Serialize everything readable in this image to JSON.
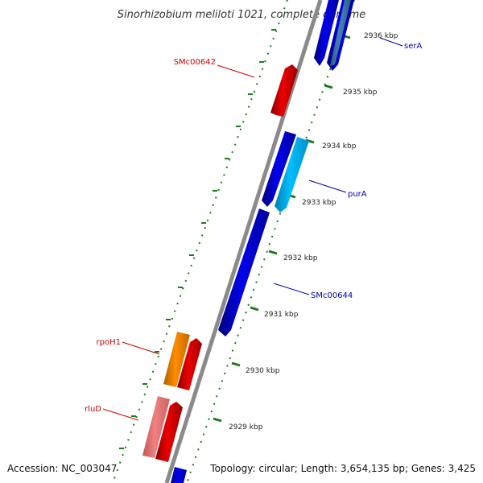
{
  "title": "Sinorhizobium meliloti 1021, complete genome",
  "footer": {
    "accession": "Accession: NC_003047",
    "topology": "Topology: circular; Length: 3,654,135 bp; Genes: 3,425"
  },
  "colors": {
    "backbone": "#8a8a8a",
    "ruler": "#1a7a1a",
    "forward_label": "#cc0000",
    "reverse_label": "#0000aa"
  },
  "ticks": [
    {
      "label": "2936 kbp"
    },
    {
      "label": "2935 kbp"
    },
    {
      "label": "2934 kbp"
    },
    {
      "label": "2933 kbp"
    },
    {
      "label": "2932 kbp"
    },
    {
      "label": "2931 kbp"
    },
    {
      "label": "2930 kbp"
    },
    {
      "label": "2929 kbp"
    }
  ],
  "gene_labels": [
    {
      "name": "serA",
      "strand": "reverse"
    },
    {
      "name": "SMc00642",
      "strand": "forward"
    },
    {
      "name": "purA",
      "strand": "reverse"
    },
    {
      "name": "SMc00644",
      "strand": "reverse"
    },
    {
      "name": "rpoH1",
      "strand": "forward"
    },
    {
      "name": "rluD",
      "strand": "forward"
    }
  ],
  "features": [
    {
      "id": "serA",
      "strand": "reverse",
      "color": "#0000ee"
    },
    {
      "id": "serA-2",
      "strand": "reverse",
      "color": "#4682b4"
    },
    {
      "id": "SMc00642",
      "strand": "forward",
      "color": "#ee0000"
    },
    {
      "id": "unlabeled-blue",
      "strand": "reverse",
      "color": "#0000ee"
    },
    {
      "id": "purA",
      "strand": "reverse",
      "color": "#00bfff"
    },
    {
      "id": "SMc00644",
      "strand": "reverse",
      "color": "#0000ee"
    },
    {
      "id": "rpoH1",
      "strand": "forward",
      "color": "#ff8c00"
    },
    {
      "id": "rpoH1-neighbor",
      "strand": "forward",
      "color": "#ee0000"
    },
    {
      "id": "rluD",
      "strand": "forward",
      "color": "#f08080"
    },
    {
      "id": "rluD-neighbor",
      "strand": "forward",
      "color": "#ee0000"
    },
    {
      "id": "bottom-blue",
      "strand": "reverse",
      "color": "#0000ee"
    }
  ]
}
